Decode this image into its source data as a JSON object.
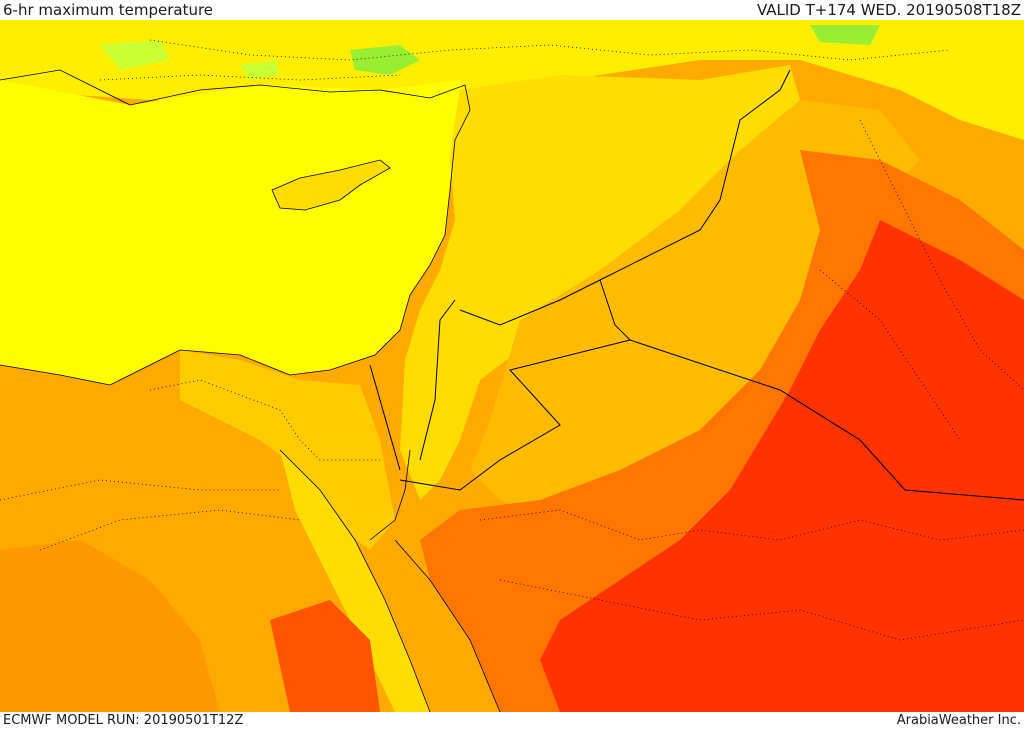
{
  "header": {
    "title": "6-hr maximum temperature",
    "valid": "VALID T+174 WED. 20190508T18Z"
  },
  "footer": {
    "model_run": "ECMWF MODEL RUN: 20190501T12Z",
    "credit": "ArabiaWeather Inc."
  },
  "map": {
    "colors": {
      "green": "#99ee33",
      "light_green": "#ccff33",
      "yellow": "#ffff00",
      "gold": "#ffdd00",
      "light_orange": "#ffbb00",
      "orange": "#ff9900",
      "dark_orange": "#ff6600",
      "red": "#ff3300"
    }
  }
}
